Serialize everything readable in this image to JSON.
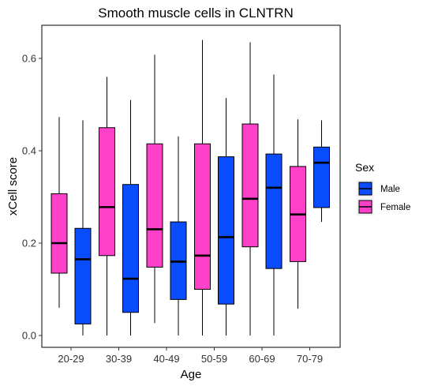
{
  "chart_data": {
    "type": "box",
    "title": "Smooth muscle cells in CLNTRN",
    "xlabel": "Age",
    "ylabel": "xCell score",
    "ylim": [
      -0.02,
      0.67
    ],
    "yticks": [
      0.0,
      0.2,
      0.4,
      0.6
    ],
    "ytick_labels": [
      "0.0",
      "0.2",
      "0.4",
      "0.6"
    ],
    "categories": [
      "20-29",
      "30-39",
      "40-49",
      "50-59",
      "60-69",
      "70-79"
    ],
    "grid": false,
    "legend": {
      "title": "Sex",
      "position": "right",
      "entries": [
        {
          "label": "Male",
          "color": "#0a4dff"
        },
        {
          "label": "Female",
          "color": "#ff40c8"
        }
      ]
    },
    "series": [
      {
        "name": "Female",
        "color": "#ff40c8",
        "boxes": [
          {
            "min": 0.06,
            "q1": 0.135,
            "median": 0.2,
            "q3": 0.307,
            "max": 0.473
          },
          {
            "min": 0.0,
            "q1": 0.173,
            "median": 0.278,
            "q3": 0.45,
            "max": 0.56
          },
          {
            "min": 0.027,
            "q1": 0.148,
            "median": 0.23,
            "q3": 0.415,
            "max": 0.608
          },
          {
            "min": 0.0,
            "q1": 0.1,
            "median": 0.173,
            "q3": 0.415,
            "max": 0.64
          },
          {
            "min": 0.0,
            "q1": 0.192,
            "median": 0.296,
            "q3": 0.458,
            "max": 0.635
          },
          {
            "min": 0.058,
            "q1": 0.16,
            "median": 0.262,
            "q3": 0.366,
            "max": 0.468
          }
        ]
      },
      {
        "name": "Male",
        "color": "#0a4dff",
        "boxes": [
          {
            "min": 0.0,
            "q1": 0.025,
            "median": 0.165,
            "q3": 0.232,
            "max": 0.466
          },
          {
            "min": 0.0,
            "q1": 0.05,
            "median": 0.123,
            "q3": 0.327,
            "max": 0.51
          },
          {
            "min": 0.0,
            "q1": 0.078,
            "median": 0.16,
            "q3": 0.246,
            "max": 0.431
          },
          {
            "min": 0.0,
            "q1": 0.068,
            "median": 0.213,
            "q3": 0.387,
            "max": 0.514
          },
          {
            "min": 0.0,
            "q1": 0.145,
            "median": 0.32,
            "q3": 0.393,
            "max": 0.565
          },
          {
            "min": 0.246,
            "q1": 0.277,
            "median": 0.374,
            "q3": 0.408,
            "max": 0.466
          }
        ]
      }
    ]
  }
}
